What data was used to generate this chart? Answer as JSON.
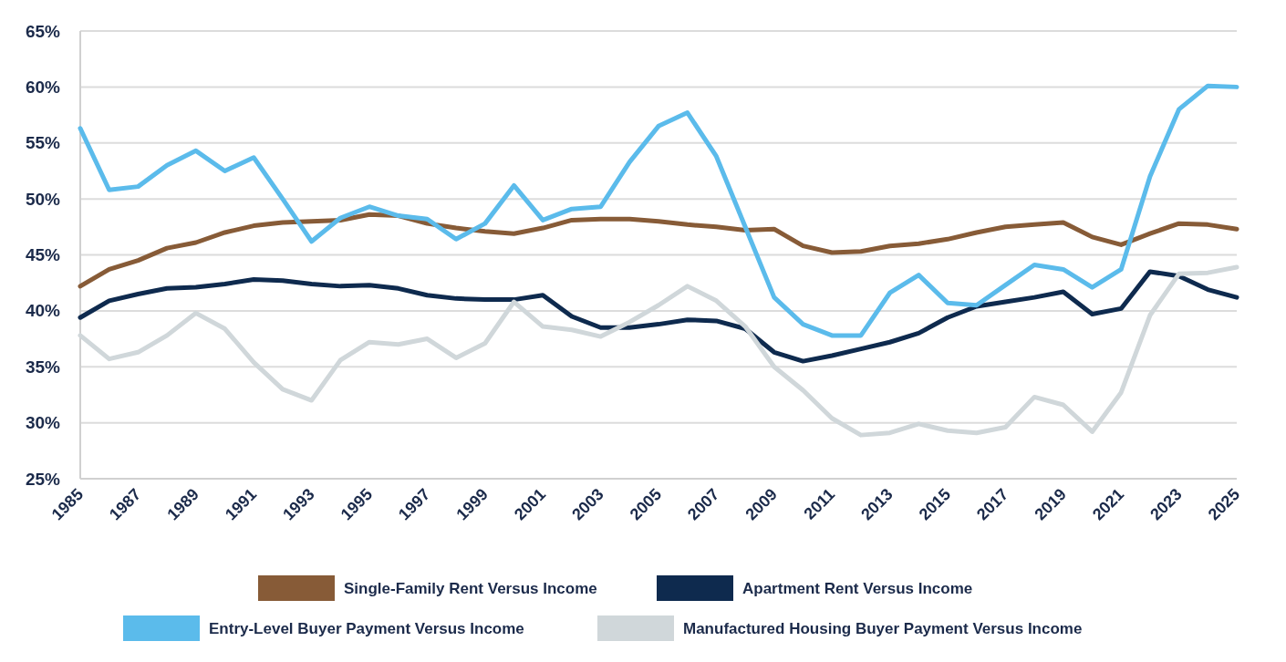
{
  "chart_data": {
    "type": "line",
    "x": [
      1985,
      1986,
      1987,
      1988,
      1989,
      1990,
      1991,
      1992,
      1993,
      1994,
      1995,
      1996,
      1997,
      1998,
      1999,
      2000,
      2001,
      2002,
      2003,
      2004,
      2005,
      2006,
      2007,
      2008,
      2009,
      2010,
      2011,
      2012,
      2013,
      2014,
      2015,
      2016,
      2017,
      2018,
      2019,
      2020,
      2021,
      2022,
      2023,
      2024,
      2025
    ],
    "series": [
      {
        "name": "Single-Family Rent Versus Income",
        "color": "#875b37",
        "values": [
          42.2,
          43.7,
          44.5,
          45.6,
          46.1,
          47.0,
          47.6,
          47.9,
          48.0,
          48.1,
          48.6,
          48.5,
          47.8,
          47.4,
          47.1,
          46.9,
          47.4,
          48.1,
          48.2,
          48.2,
          48.0,
          47.7,
          47.5,
          47.2,
          47.3,
          45.8,
          45.2,
          45.3,
          45.8,
          46.0,
          46.4,
          47.0,
          47.5,
          47.7,
          47.9,
          46.6,
          45.9,
          46.9,
          47.8,
          47.7,
          47.3
        ]
      },
      {
        "name": "Apartment Rent Versus Income",
        "color": "#0e2a4e",
        "values": [
          39.4,
          40.9,
          41.5,
          42.0,
          42.1,
          42.4,
          42.8,
          42.7,
          42.4,
          42.2,
          42.3,
          42.0,
          41.4,
          41.1,
          41.0,
          41.0,
          41.4,
          39.5,
          38.5,
          38.5,
          38.8,
          39.2,
          39.1,
          38.4,
          36.3,
          35.5,
          36.0,
          36.6,
          37.2,
          38.0,
          39.4,
          40.4,
          40.8,
          41.2,
          41.7,
          39.7,
          40.2,
          43.5,
          43.1,
          41.9,
          41.2
        ]
      },
      {
        "name": "Entry-Level Buyer Payment Versus Income",
        "color": "#5bbbeb",
        "values": [
          56.3,
          50.8,
          51.1,
          53.0,
          54.3,
          52.5,
          53.7,
          50.0,
          46.2,
          48.3,
          49.3,
          48.5,
          48.2,
          46.4,
          47.8,
          51.2,
          48.1,
          49.1,
          49.3,
          53.3,
          56.5,
          57.7,
          53.8,
          47.5,
          41.2,
          38.8,
          37.8,
          37.8,
          41.6,
          43.2,
          40.7,
          40.5,
          42.3,
          44.1,
          43.7,
          42.1,
          43.7,
          52.0,
          58.0,
          60.1,
          60.0
        ]
      },
      {
        "name": "Manufactured Housing Buyer Payment Versus Income",
        "color": "#d0d7da",
        "values": [
          37.8,
          35.7,
          36.3,
          37.8,
          39.8,
          38.4,
          35.4,
          33.0,
          32.0,
          35.6,
          37.2,
          37.0,
          37.5,
          35.8,
          37.1,
          40.8,
          38.6,
          38.3,
          37.7,
          39.0,
          40.5,
          42.2,
          40.9,
          38.6,
          35.0,
          32.9,
          30.4,
          28.9,
          29.1,
          29.9,
          29.3,
          29.1,
          29.6,
          32.3,
          31.6,
          29.2,
          32.7,
          39.6,
          43.3,
          43.4,
          43.9
        ]
      }
    ],
    "xlim": [
      1985,
      2025
    ],
    "xticks": [
      1985,
      1987,
      1989,
      1991,
      1993,
      1995,
      1997,
      1999,
      2001,
      2003,
      2005,
      2007,
      2009,
      2011,
      2013,
      2015,
      2017,
      2019,
      2021,
      2023,
      2025
    ],
    "ylim": [
      25,
      65
    ],
    "yticks": [
      {
        "value": 25,
        "label": "25%"
      },
      {
        "value": 30,
        "label": "30%"
      },
      {
        "value": 35,
        "label": "35%"
      },
      {
        "value": 40,
        "label": "40%"
      },
      {
        "value": 45,
        "label": "45%"
      },
      {
        "value": 50,
        "label": "50%"
      },
      {
        "value": 55,
        "label": "55%"
      },
      {
        "value": 60,
        "label": "60%"
      },
      {
        "value": 65,
        "label": "65%"
      }
    ],
    "grid": "y",
    "legend": "bottom",
    "marker": "none",
    "line_style": "solid"
  }
}
